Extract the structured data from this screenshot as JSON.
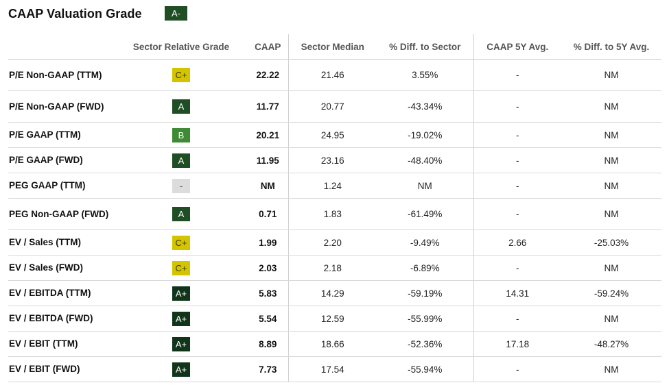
{
  "title": "CAAP Valuation Grade",
  "overall_grade": "A-",
  "headers": [
    "",
    "Sector Relative Grade",
    "CAAP",
    "Sector Median",
    "% Diff. to Sector",
    "CAAP 5Y Avg.",
    "% Diff. to 5Y Avg."
  ],
  "colors": {
    "grade_c_plus": "#d4c400",
    "grade_a": "#1f4d24",
    "grade_a_plus": "#11351a",
    "grade_b": "#3f8a34",
    "grade_none": "#dcdcdc"
  },
  "rows": [
    {
      "metric": "P/E Non-GAAP (TTM)",
      "grade": "C+",
      "caap": "22.22",
      "sector_median": "21.46",
      "diff_sector": "3.55%",
      "avg5y": "-",
      "diff_5y": "NM"
    },
    {
      "metric": "P/E Non-GAAP (FWD)",
      "grade": "A",
      "caap": "11.77",
      "sector_median": "20.77",
      "diff_sector": "-43.34%",
      "avg5y": "-",
      "diff_5y": "NM"
    },
    {
      "metric": "P/E GAAP (TTM)",
      "grade": "B",
      "caap": "20.21",
      "sector_median": "24.95",
      "diff_sector": "-19.02%",
      "avg5y": "-",
      "diff_5y": "NM"
    },
    {
      "metric": "P/E GAAP (FWD)",
      "grade": "A",
      "caap": "11.95",
      "sector_median": "23.16",
      "diff_sector": "-48.40%",
      "avg5y": "-",
      "diff_5y": "NM"
    },
    {
      "metric": "PEG GAAP (TTM)",
      "grade": "-",
      "caap": "NM",
      "sector_median": "1.24",
      "diff_sector": "NM",
      "avg5y": "-",
      "diff_5y": "NM"
    },
    {
      "metric": "PEG Non-GAAP (FWD)",
      "grade": "A",
      "caap": "0.71",
      "sector_median": "1.83",
      "diff_sector": "-61.49%",
      "avg5y": "-",
      "diff_5y": "NM"
    },
    {
      "metric": "EV / Sales (TTM)",
      "grade": "C+",
      "caap": "1.99",
      "sector_median": "2.20",
      "diff_sector": "-9.49%",
      "avg5y": "2.66",
      "diff_5y": "-25.03%"
    },
    {
      "metric": "EV / Sales (FWD)",
      "grade": "C+",
      "caap": "2.03",
      "sector_median": "2.18",
      "diff_sector": "-6.89%",
      "avg5y": "-",
      "diff_5y": "NM"
    },
    {
      "metric": "EV / EBITDA (TTM)",
      "grade": "A+",
      "caap": "5.83",
      "sector_median": "14.29",
      "diff_sector": "-59.19%",
      "avg5y": "14.31",
      "diff_5y": "-59.24%"
    },
    {
      "metric": "EV / EBITDA (FWD)",
      "grade": "A+",
      "caap": "5.54",
      "sector_median": "12.59",
      "diff_sector": "-55.99%",
      "avg5y": "-",
      "diff_5y": "NM"
    },
    {
      "metric": "EV / EBIT (TTM)",
      "grade": "A+",
      "caap": "8.89",
      "sector_median": "18.66",
      "diff_sector": "-52.36%",
      "avg5y": "17.18",
      "diff_5y": "-48.27%"
    },
    {
      "metric": "EV / EBIT (FWD)",
      "grade": "A+",
      "caap": "7.73",
      "sector_median": "17.54",
      "diff_sector": "-55.94%",
      "avg5y": "-",
      "diff_5y": "NM"
    }
  ]
}
